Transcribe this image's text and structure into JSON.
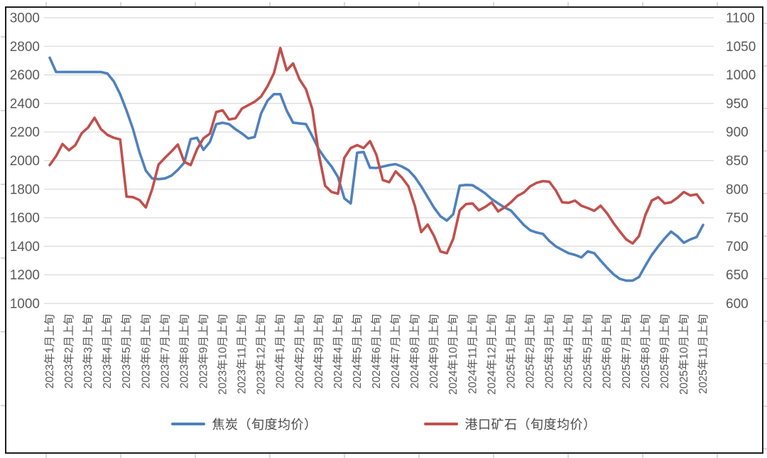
{
  "chart_data": {
    "type": "line",
    "title": "",
    "points_per_month": 3,
    "x_unit": "旬度 (three points per month: 上旬/中旬/下旬)",
    "grid": true,
    "legend_position": "bottom",
    "categories_monthly": [
      "2023年1月上旬",
      "2023年2月上旬",
      "2023年3月上旬",
      "2023年4月上旬",
      "2023年5月上旬",
      "2023年6月上旬",
      "2023年7月上旬",
      "2023年8月上旬",
      "2023年9月上旬",
      "2023年10月上旬",
      "2023年11月上旬",
      "2023年12月上旬",
      "2024年1月上旬",
      "2024年2月上旬",
      "2024年3月上旬",
      "2024年4月上旬",
      "2024年5月上旬",
      "2024年6月上旬",
      "2024年7月上旬",
      "2024年8月上旬",
      "2024年9月上旬",
      "2024年10月上旬",
      "2024年11月上旬",
      "2024年12月上旬",
      "2025年1月上旬",
      "2025年2月上旬",
      "2025年3月上旬",
      "2025年4月上旬",
      "2025年5月上旬",
      "2025年6月上旬",
      "2025年7月上旬",
      "2025年8月上旬",
      "2025年9月上旬",
      "2025年10月上旬",
      "2025年11月上旬"
    ],
    "left_axis": {
      "min": 1000,
      "max": 3000,
      "step": 200,
      "ticks": [
        3000,
        2800,
        2600,
        2400,
        2200,
        2000,
        1800,
        1600,
        1400,
        1200,
        1000
      ],
      "label_color": "#595959",
      "gridline_color": "#d9d9d9"
    },
    "right_axis": {
      "min": 600,
      "max": 1100,
      "step": 50,
      "ticks": [
        1100,
        1050,
        1000,
        950,
        900,
        850,
        800,
        750,
        700,
        650,
        600
      ],
      "label_color": "#595959"
    },
    "series": [
      {
        "name": "焦炭（旬度均价）",
        "axis": "left",
        "color": "#4F81BD",
        "values": [
          2720,
          2620,
          2620,
          2620,
          2620,
          2620,
          2620,
          2620,
          2620,
          2610,
          2555,
          2465,
          2350,
          2220,
          2060,
          1930,
          1875,
          1870,
          1875,
          1895,
          1935,
          1985,
          2150,
          2160,
          2075,
          2130,
          2255,
          2265,
          2255,
          2220,
          2190,
          2155,
          2165,
          2330,
          2420,
          2465,
          2465,
          2350,
          2265,
          2260,
          2255,
          2170,
          2080,
          2015,
          1958,
          1885,
          1735,
          1700,
          2055,
          2060,
          1950,
          1948,
          1958,
          1968,
          1975,
          1958,
          1933,
          1885,
          1820,
          1745,
          1670,
          1610,
          1580,
          1625,
          1825,
          1830,
          1828,
          1800,
          1770,
          1730,
          1700,
          1672,
          1650,
          1600,
          1550,
          1512,
          1497,
          1487,
          1437,
          1400,
          1375,
          1352,
          1340,
          1322,
          1365,
          1352,
          1300,
          1250,
          1205,
          1172,
          1160,
          1160,
          1185,
          1265,
          1340,
          1400,
          1455,
          1503,
          1470,
          1425,
          1448,
          1465,
          1550
        ]
      },
      {
        "name": "港口矿石（旬度均价）",
        "axis": "right",
        "color": "#C0504D",
        "values": [
          842,
          858,
          879,
          868,
          877,
          898,
          908,
          925,
          905,
          895,
          890,
          887,
          787,
          786,
          781,
          768,
          800,
          843,
          855,
          866,
          878,
          848,
          842,
          870,
          889,
          897,
          935,
          938,
          922,
          924,
          941,
          947,
          953,
          962,
          980,
          1003,
          1047,
          1008,
          1020,
          992,
          975,
          940,
          862,
          806,
          795,
          792,
          855,
          872,
          877,
          872,
          884,
          860,
          816,
          812,
          831,
          820,
          805,
          771,
          725,
          738,
          718,
          691,
          688,
          713,
          763,
          774,
          775,
          763,
          769,
          777,
          761,
          768,
          777,
          788,
          794,
          805,
          811,
          814,
          813,
          798,
          777,
          776,
          780,
          771,
          767,
          762,
          771,
          758,
          741,
          726,
          712,
          705,
          718,
          755,
          780,
          786,
          775,
          777,
          785,
          795,
          789,
          791,
          776
        ]
      }
    ]
  },
  "colors": {
    "frame": "#1c1c1c",
    "background": "#ffffff",
    "outer_ticks": "#b0b0b0",
    "x_label_color": "#595959"
  }
}
